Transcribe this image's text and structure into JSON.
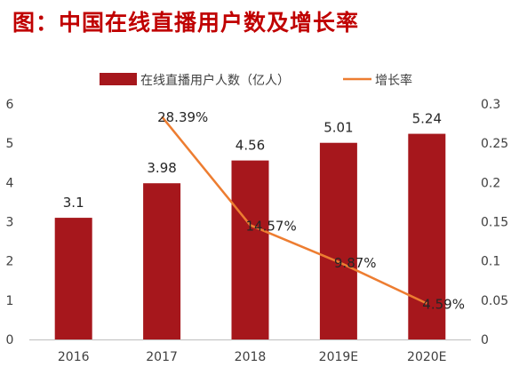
{
  "title": "图：中国在线直播用户数及增长率",
  "colors": {
    "bar": "#a6171c",
    "line": "#ed7d31",
    "title": "#c00000"
  },
  "chart_data": {
    "type": "bar",
    "categories": [
      "2016",
      "2017",
      "2018",
      "2019E",
      "2020E"
    ],
    "series": [
      {
        "name": "在线直播用户人数（亿人）",
        "type": "bar",
        "axis": "left",
        "values": [
          3.1,
          3.98,
          4.56,
          5.01,
          5.24
        ],
        "labels": [
          "3.1",
          "3.98",
          "4.56",
          "5.01",
          "5.24"
        ]
      },
      {
        "name": "增长率",
        "type": "line",
        "axis": "right",
        "values": [
          null,
          0.2839,
          0.1457,
          0.0987,
          0.0459
        ],
        "labels": [
          "",
          "28.39%",
          "14.57%",
          "9.87%",
          "4.59%"
        ]
      }
    ],
    "y_left": {
      "min": 0,
      "max": 6,
      "ticks": [
        "0",
        "1",
        "2",
        "3",
        "4",
        "5",
        "6"
      ]
    },
    "y_right": {
      "min": 0,
      "max": 0.3,
      "ticks": [
        "0",
        "0.05",
        "0.1",
        "0.15",
        "0.2",
        "0.25",
        "0.3"
      ]
    },
    "legend_position": "top",
    "grid": false
  }
}
